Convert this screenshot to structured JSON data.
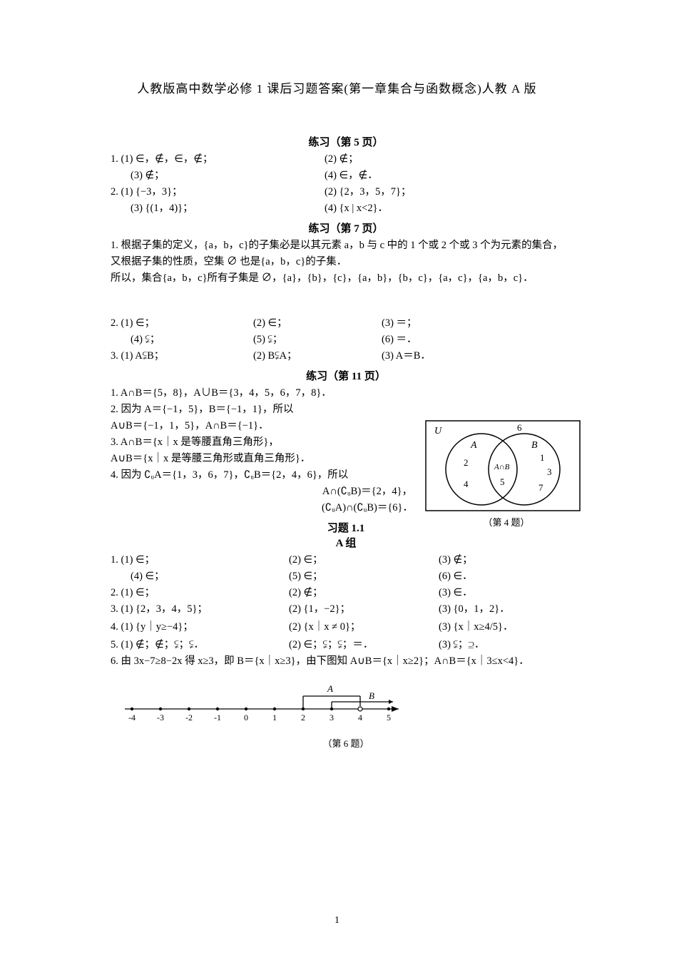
{
  "title": "人教版高中数学必修 1 课后习题答案(第一章集合与函数概念)人教 A 版",
  "sections": {
    "p5": "练习（第 5 页）",
    "p7": "练习（第 7 页）",
    "p11": "练习（第 11 页）",
    "ex11": "习题 1.1",
    "groupA": "A 组"
  },
  "p5": {
    "q1_1": "1. (1) ∈，∉，∈，∉；",
    "q1_2": "(2) ∉；",
    "q1_3": "(3) ∉；",
    "q1_4": "(4) ∈，∉．",
    "q2_1": "2. (1) {−3，3}；",
    "q2_2": "(2) {2，3，5，7}；",
    "q2_3": "(3) {(1，4)}；",
    "q2_4": "(4) {x | x<2}．"
  },
  "p7": {
    "q1a": "1. 根据子集的定义，{a，b，c}的子集必是以其元素 a，b 与 c 中的 1 个或 2 个或 3 个为元素的集合，",
    "q1b": "又根据子集的性质，空集 ∅ 也是{a，b，c}的子集．",
    "q1c": "所以，集合{a，b，c}所有子集是 ∅，{a}，{b}，{c}，{a，b}，{b，c}，{a，c}，{a，b，c}．",
    "q2_1": "2. (1) ∈；",
    "q2_2": "(2) ∈；",
    "q2_3": "(3) ＝；",
    "q2_4": "(4) ⫋；",
    "q2_5": "(5) ⫋；",
    "q2_6": "(6) ＝．",
    "q3_1": "3. (1) A⫋B；",
    "q3_2": "(2) B⫋A；",
    "q3_3": "(3) A＝B．"
  },
  "p11": {
    "q1": "1. A∩B＝{5，8}，A∪B＝{3，4，5，6，7，8}．",
    "q2a": "2. 因为 A＝{−1，5}，B＝{−1，1}，所以",
    "q2b": "A∪B＝{−1，1，5}，A∩B＝{−1}．",
    "q3a": "3. A∩B＝{x｜x 是等腰直角三角形}，",
    "q3b": "A∪B＝{x｜x 是等腰三角形或直角三角形}．",
    "q4a": "4. 因为 ∁ᵤA＝{1，3，6，7}，∁ᵤB＝{2，4，6}，所以",
    "q4b": "A∩(∁ᵤB)＝{2，4}，",
    "q4c": "(∁ᵤA)∩(∁ᵤB)＝{6}．"
  },
  "venn": {
    "U": "U",
    "A": "A",
    "B": "B",
    "AcapB": "A∩B",
    "n2": "2",
    "n4": "4",
    "n5": "5",
    "n1": "1",
    "n3": "3",
    "n7": "7",
    "n6": "6",
    "caption": "（第 4 题）",
    "stroke": "#000000",
    "bg": "#ffffff"
  },
  "grpA": {
    "q1_1": "1. (1) ∈；",
    "q1_2": "(2) ∈；",
    "q1_3": "(3) ∉；",
    "q1_4": "(4) ∈；",
    "q1_5": "(5) ∈；",
    "q1_6": "(6) ∈．",
    "q2_1": "2. (1) ∈；",
    "q2_2": "(2) ∉；",
    "q2_3": "(3) ∈．",
    "q3_1": "3. (1) {2，3，4，5}；",
    "q3_2": "(2) {1，−2}；",
    "q3_3": "(3) {0，1，2}．",
    "q4_1": "4. (1) {y｜y≥−4}；",
    "q4_2": "(2) {x｜x ≠ 0}；",
    "q4_3": "(3) {x｜x≥4/5}．",
    "q5_1": "5. (1) ∉；∉；⫋；⫋．",
    "q5_2": "(2) ∈；⫋；⫋；＝．",
    "q5_3": "(3) ⫋；⊇．",
    "q6": "6. 由 3x−7≥8−2x 得 x≥3，即 B＝{x｜x≥3}，由下图知 A∪B＝{x｜x≥2}；A∩B＝{x｜3≤x<4}．"
  },
  "numberline": {
    "ticks": [
      "-4",
      "-3",
      "-2",
      "-1",
      "0",
      "1",
      "2",
      "3",
      "4",
      "5"
    ],
    "A": "A",
    "B": "B",
    "caption": "（第 6 题）",
    "stroke": "#000000",
    "fill": "#000000"
  },
  "page_number": "1"
}
